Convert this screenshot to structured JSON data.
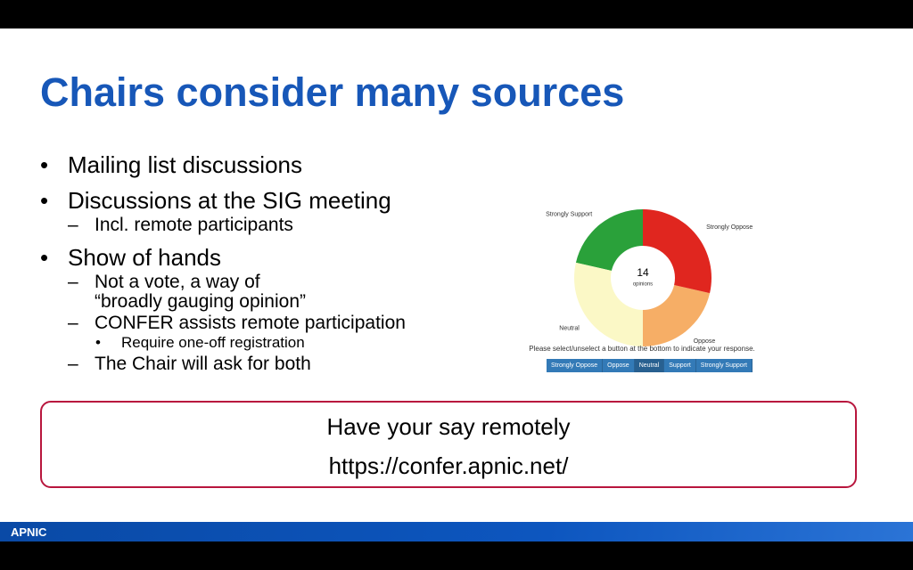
{
  "header": {
    "title": "Chairs consider many sources"
  },
  "bullets": [
    {
      "level": 1,
      "text": "Mailing list discussions"
    },
    {
      "level": 1,
      "text": "Discussions at the SIG meeting"
    },
    {
      "level": 2,
      "text": "Incl. remote participants"
    },
    {
      "level": 1,
      "text": "Show of hands"
    },
    {
      "level": 2,
      "text": "Not a vote, a way of\n“broadly gauging opinion”"
    },
    {
      "level": 2,
      "text": "CONFER assists remote participation"
    },
    {
      "level": 3,
      "text": "Require one-off registration"
    },
    {
      "level": 2,
      "text": "The Chair will ask for both"
    }
  ],
  "poll": {
    "total": 14,
    "total_label": "opinions",
    "chart_data": {
      "type": "pie",
      "categories": [
        "Strongly Oppose",
        "Oppose",
        "Neutral",
        "Strongly Support"
      ],
      "values": [
        4,
        3,
        4,
        3
      ],
      "colors": [
        "#e0261f",
        "#f6ae66",
        "#fbf8c6",
        "#2aa13a"
      ]
    },
    "instruction": "Please select/unselect a button at the bottom to indicate your response.",
    "buttons": [
      "Strongly Oppose",
      "Oppose",
      "Neutral",
      "Support",
      "Strongly Support"
    ]
  },
  "callout": {
    "lines": [
      "Have your say remotely",
      "https://confer.apnic.net/"
    ]
  },
  "footer": {
    "logo": "APNIC"
  }
}
